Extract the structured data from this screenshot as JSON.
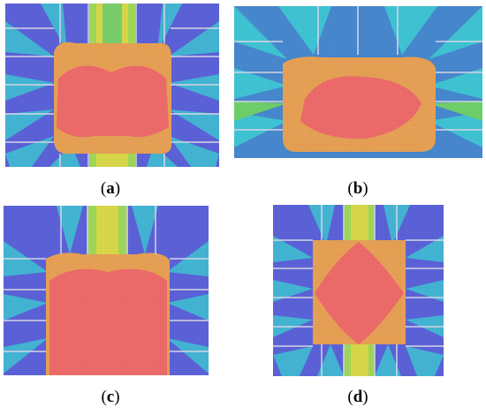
{
  "captions": {
    "a": {
      "open": "(",
      "letter": "a",
      "close": ")"
    },
    "b": {
      "open": "(",
      "letter": "b",
      "close": ")"
    },
    "c": {
      "open": "(",
      "letter": "c",
      "close": ")"
    },
    "d": {
      "open": "(",
      "letter": "d",
      "close": ")"
    }
  },
  "colors": {
    "background_blue": "#5c62d8",
    "cyan": "#3fc4d4",
    "teal": "#36a8c8",
    "green": "#6fd06a",
    "yellow": "#d9d84a",
    "orange": "#e7a155",
    "red": "#ee6b6b",
    "divider": "#d8d8e8"
  }
}
